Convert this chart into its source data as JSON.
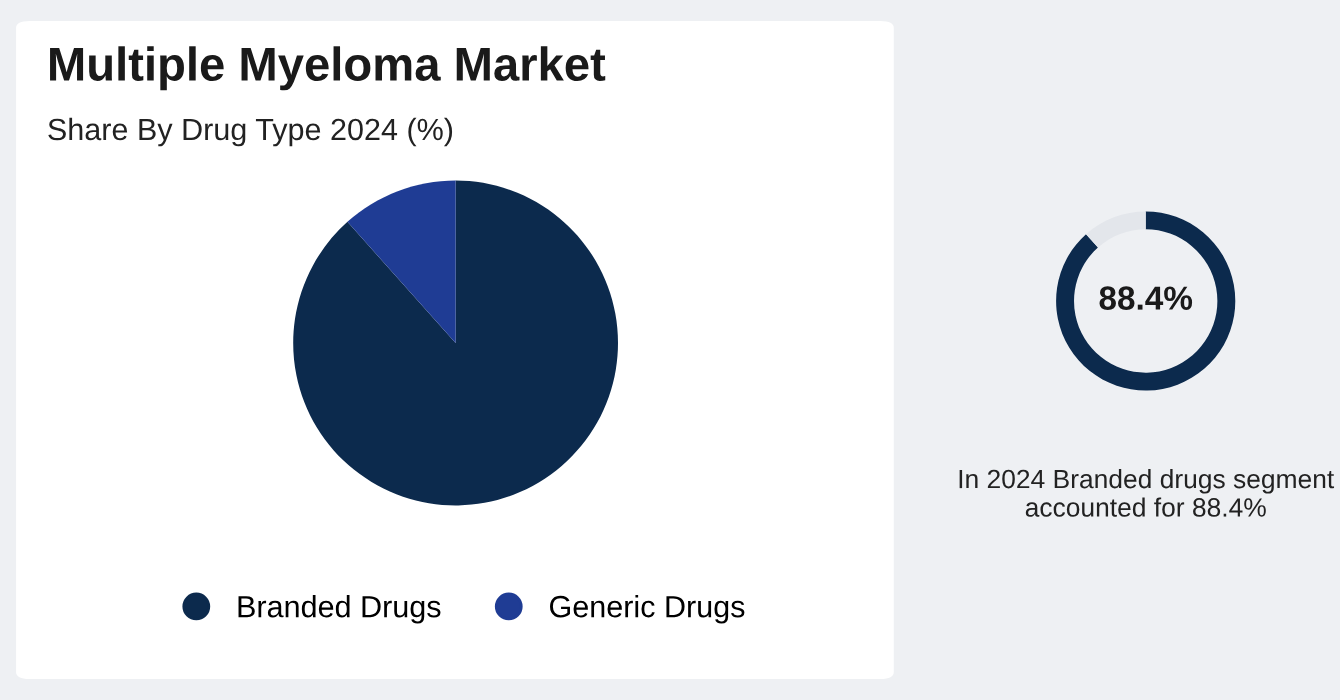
{
  "chart_data": [
    {
      "type": "pie",
      "title": "Multiple Myeloma Market",
      "subtitle": "Share By Drug Type 2024 (%)",
      "categories": [
        "Branded Drugs",
        "Generic Drugs"
      ],
      "values": [
        88.4,
        11.6
      ],
      "colors": [
        "#0c2a4d",
        "#1f3c94"
      ],
      "legend": "bottom"
    },
    {
      "type": "donut",
      "categories": [
        null,
        null
      ],
      "values": [
        88.4,
        11.6
      ],
      "colors": [
        "#0c2a4d",
        "#e3e6eb"
      ],
      "value_labels": [
        "88.4%",
        null
      ],
      "annotations": [
        "In 2024 Branded drugs segment accounted for 88.4%"
      ]
    }
  ]
}
